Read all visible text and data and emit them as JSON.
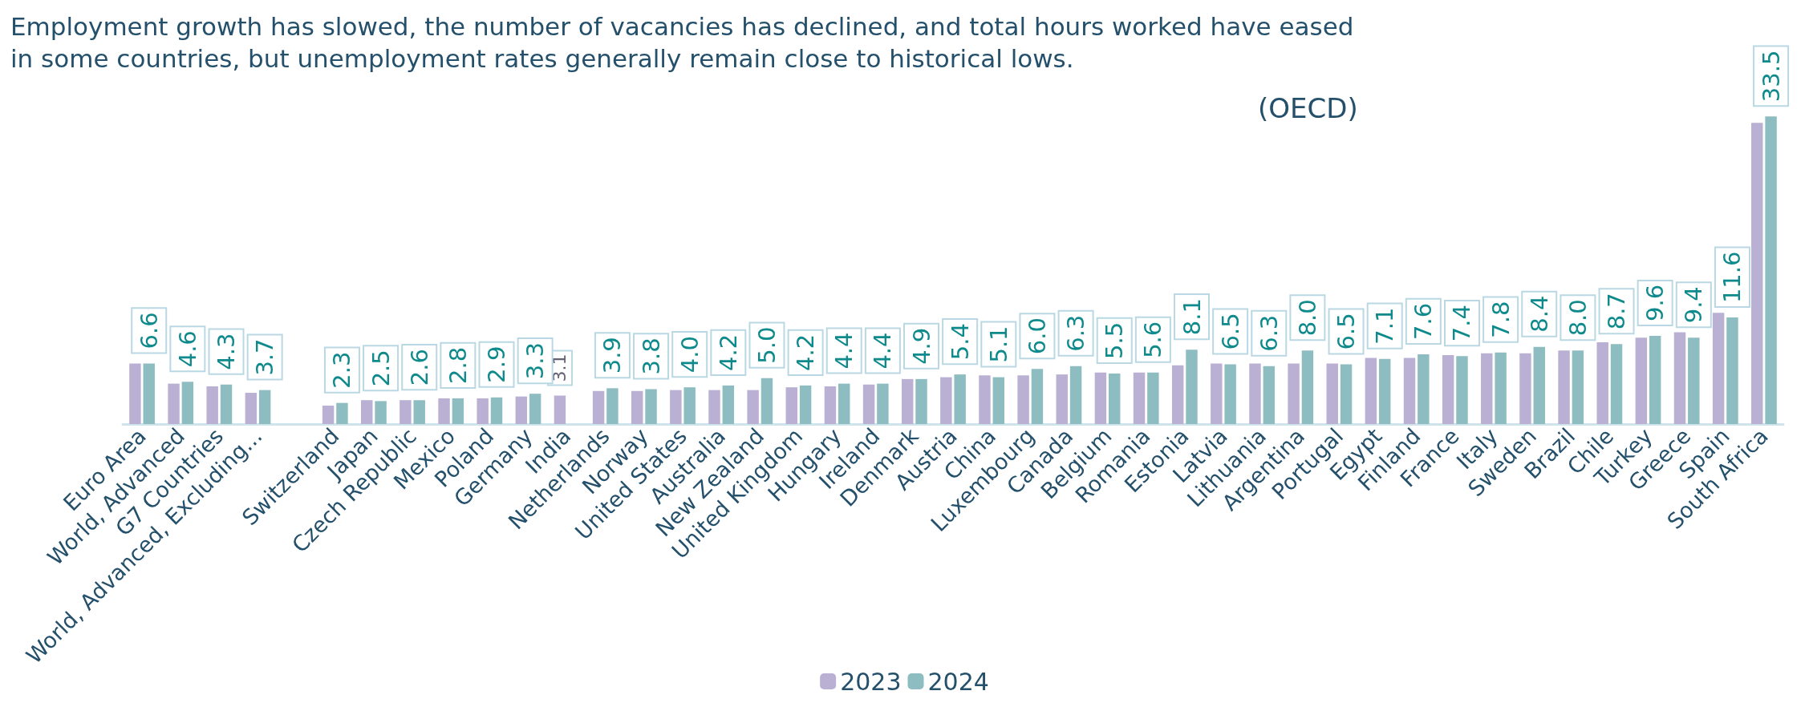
{
  "chart_data": {
    "type": "bar",
    "title": "Employment growth has slowed, the number of vacancies has declined, and total hours worked have eased in some countries, but unemployment rates generally remain close to historical lows.",
    "annotations": [
      "(OECD)"
    ],
    "categories": [
      "Euro Area",
      "World, Advanced",
      "G7 Countries",
      "World, Advanced, Excluding...",
      null,
      "Switzerland",
      "Japan",
      "Czech Republic",
      "Mexico",
      "Poland",
      "Germany",
      "India",
      "Netherlands",
      "Norway",
      "United States",
      "Australia",
      "New Zealand",
      "United Kingdom",
      "Hungary",
      "Ireland",
      "Denmark",
      "Austria",
      "China",
      "Luxembourg",
      "Canada",
      "Belgium",
      "Romania",
      "Estonia",
      "Latvia",
      "Lithuania",
      "Argentina",
      "Portugal",
      "Egypt",
      "Finland",
      "France",
      "Italy",
      "Sweden",
      "Brazil",
      "Chile",
      "Turkey",
      "Greece",
      "Spain",
      "South Africa"
    ],
    "series": [
      {
        "name": "2023",
        "color": "#b9b0d3",
        "values": [
          6.6,
          4.4,
          4.1,
          3.4,
          null,
          2.0,
          2.6,
          2.6,
          2.8,
          2.8,
          3.0,
          3.1,
          3.6,
          3.6,
          3.7,
          3.7,
          3.7,
          4.0,
          4.1,
          4.3,
          4.9,
          5.1,
          5.3,
          5.3,
          5.4,
          5.6,
          5.6,
          6.4,
          6.6,
          6.6,
          6.6,
          6.6,
          7.2,
          7.2,
          7.5,
          7.7,
          7.7,
          8.0,
          8.9,
          9.4,
          10.0,
          12.1,
          32.8
        ],
        "value_labels": [
          null,
          null,
          null,
          null,
          null,
          null,
          null,
          null,
          null,
          null,
          null,
          "3.1",
          null,
          null,
          null,
          null,
          null,
          null,
          null,
          null,
          null,
          null,
          null,
          null,
          null,
          null,
          null,
          null,
          null,
          null,
          null,
          null,
          null,
          null,
          null,
          null,
          null,
          null,
          null,
          null,
          null,
          null,
          null
        ]
      },
      {
        "name": "2024",
        "color": "#8dbdc0",
        "values": [
          6.6,
          4.6,
          4.3,
          3.7,
          null,
          2.3,
          2.5,
          2.6,
          2.8,
          2.9,
          3.3,
          null,
          3.9,
          3.8,
          4.0,
          4.2,
          5.0,
          4.2,
          4.4,
          4.4,
          4.9,
          5.4,
          5.1,
          6.0,
          6.3,
          5.5,
          5.6,
          8.1,
          6.5,
          6.3,
          8.0,
          6.5,
          7.1,
          7.6,
          7.4,
          7.8,
          8.4,
          8.0,
          8.7,
          9.6,
          9.4,
          11.6,
          33.5
        ],
        "value_labels": [
          "6.6",
          "4.6",
          "4.3",
          "3.7",
          null,
          "2.3",
          "2.5",
          "2.6",
          "2.8",
          "2.9",
          "3.3",
          null,
          "3.9",
          "3.8",
          "4.0",
          "4.2",
          "5.0",
          "4.2",
          "4.4",
          "4.4",
          "4.9",
          "5.4",
          "5.1",
          "6.0",
          "6.3",
          "5.5",
          "5.6",
          "8.1",
          "6.5",
          "6.3",
          "8.0",
          "6.5",
          "7.1",
          "7.6",
          "7.4",
          "7.8",
          "8.4",
          "8.0",
          "8.7",
          "9.6",
          "9.4",
          "11.6",
          "33.5"
        ]
      }
    ],
    "legend": "bottom"
  }
}
